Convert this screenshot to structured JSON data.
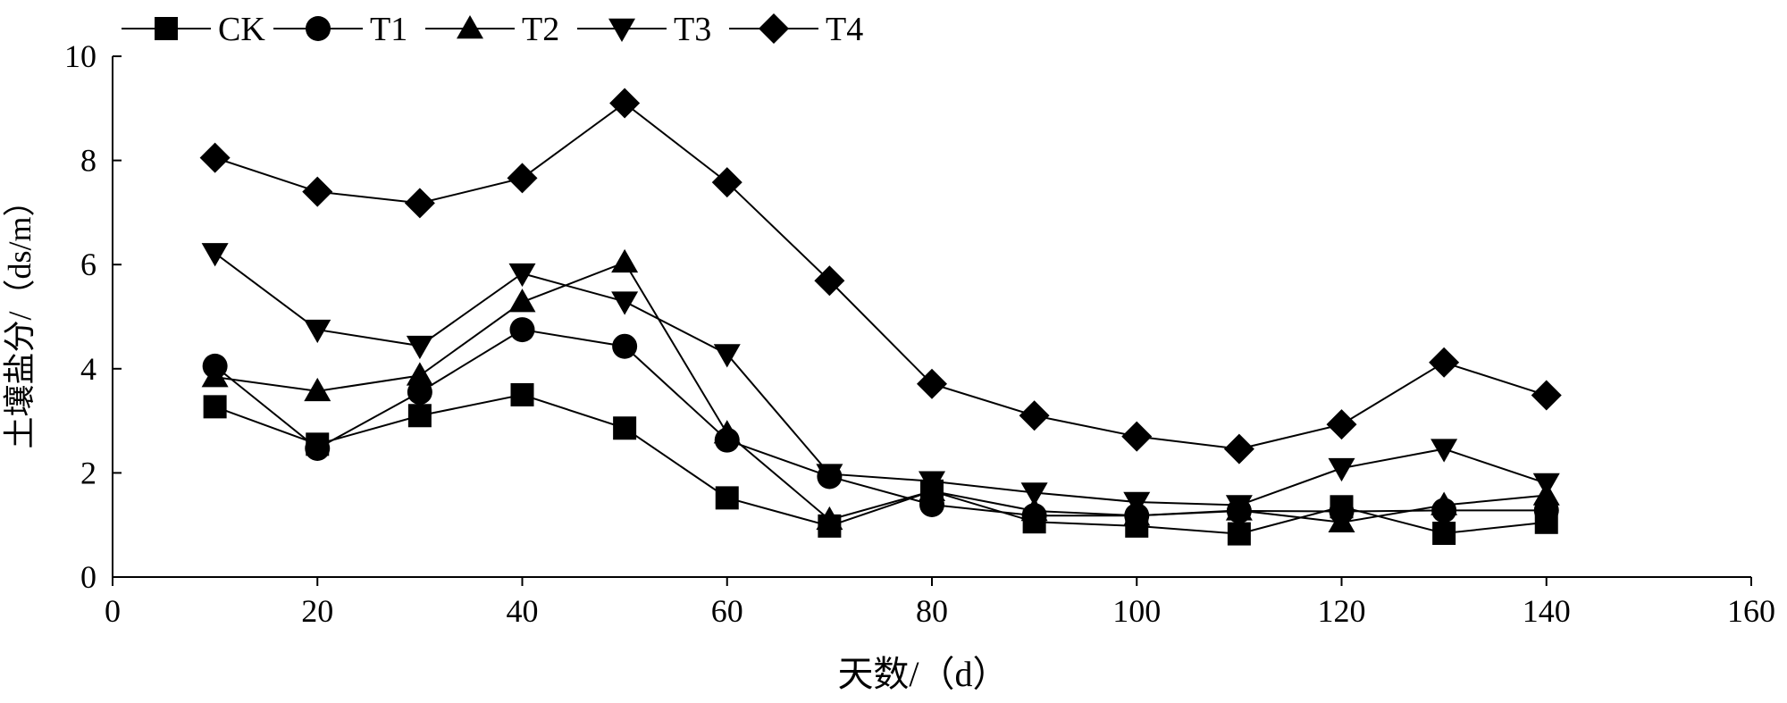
{
  "chart_data": {
    "type": "line",
    "title": "",
    "xlabel": "天数/（d）",
    "ylabel": "土壤盐分/（ds/m）",
    "xlim": [
      0,
      160
    ],
    "ylim": [
      0,
      10
    ],
    "x_ticks": [
      0,
      20,
      40,
      60,
      80,
      100,
      120,
      140,
      160
    ],
    "y_ticks": [
      0,
      2,
      4,
      6,
      8,
      10
    ],
    "grid": false,
    "legend_position": "top-left",
    "x": [
      10,
      20,
      30,
      40,
      50,
      60,
      70,
      80,
      90,
      100,
      110,
      120,
      130,
      140
    ],
    "series": [
      {
        "name": "CK",
        "marker": "square",
        "values": [
          3.27,
          2.55,
          3.1,
          3.5,
          2.86,
          1.52,
          0.98,
          1.65,
          1.06,
          0.98,
          0.83,
          1.35,
          0.84,
          1.05
        ]
      },
      {
        "name": "T1",
        "marker": "circle",
        "values": [
          4.05,
          2.47,
          3.55,
          4.75,
          4.43,
          2.63,
          1.93,
          1.39,
          1.18,
          1.18,
          1.27,
          1.26,
          1.28,
          1.28
        ]
      },
      {
        "name": "T2",
        "marker": "triangle-up",
        "values": [
          3.84,
          3.57,
          3.87,
          5.28,
          6.04,
          2.76,
          1.1,
          1.65,
          1.27,
          1.18,
          1.28,
          1.05,
          1.38,
          1.57
        ]
      },
      {
        "name": "T3",
        "marker": "triangle-down",
        "values": [
          6.22,
          4.75,
          4.44,
          5.83,
          5.29,
          4.28,
          1.98,
          1.84,
          1.62,
          1.44,
          1.38,
          2.09,
          2.46,
          1.8
        ]
      },
      {
        "name": "T4",
        "marker": "diamond",
        "values": [
          8.05,
          7.4,
          7.18,
          7.66,
          9.1,
          7.58,
          5.69,
          3.71,
          3.1,
          2.7,
          2.46,
          2.93,
          4.12,
          3.49
        ]
      }
    ],
    "colors": {
      "line": "#000000",
      "marker": "#000000",
      "axis": "#000000"
    }
  }
}
